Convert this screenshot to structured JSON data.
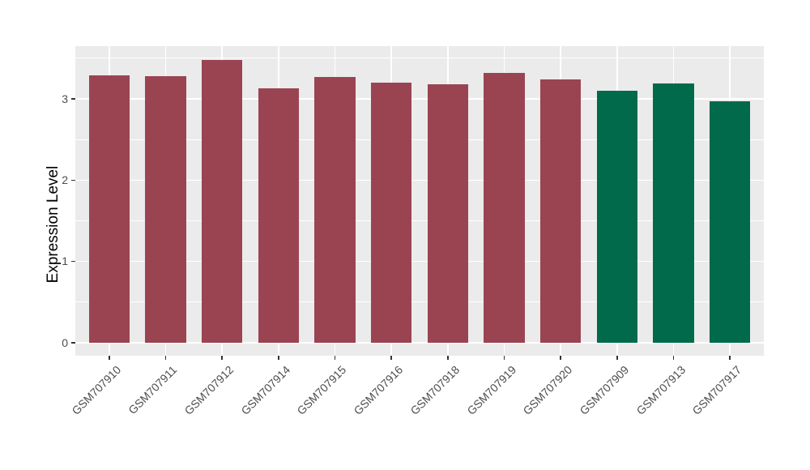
{
  "chart_data": {
    "type": "bar",
    "title": "",
    "xlabel": "",
    "ylabel": "Expression Level",
    "categories": [
      "GSM707910",
      "GSM707911",
      "GSM707912",
      "GSM707914",
      "GSM707915",
      "GSM707916",
      "GSM707918",
      "GSM707919",
      "GSM707920",
      "GSM707909",
      "GSM707913",
      "GSM707917"
    ],
    "values": [
      3.29,
      3.28,
      3.48,
      3.13,
      3.27,
      3.2,
      3.18,
      3.32,
      3.24,
      3.1,
      3.19,
      2.97
    ],
    "bar_colors": [
      "#9A4452",
      "#9A4452",
      "#9A4452",
      "#9A4452",
      "#9A4452",
      "#9A4452",
      "#9A4452",
      "#9A4452",
      "#9A4452",
      "#016A4B",
      "#016A4B",
      "#016A4B"
    ],
    "y_ticks": [
      0,
      1,
      2,
      3
    ],
    "y_minor_ticks": [
      0.5,
      1.5,
      2.5,
      3.5
    ],
    "ylim": [
      0,
      3.65
    ],
    "grid": true,
    "legend": "none",
    "styles": {
      "background": "#FFFFFF",
      "panel_bg": "#EBEBEB",
      "grid_color": "#FFFFFF",
      "tick_mark_color": "#333333",
      "tick_label_color": "#4D4D4D",
      "axis_title_color": "#000000",
      "group_red": "#9A4452",
      "group_green": "#016A4B"
    }
  }
}
